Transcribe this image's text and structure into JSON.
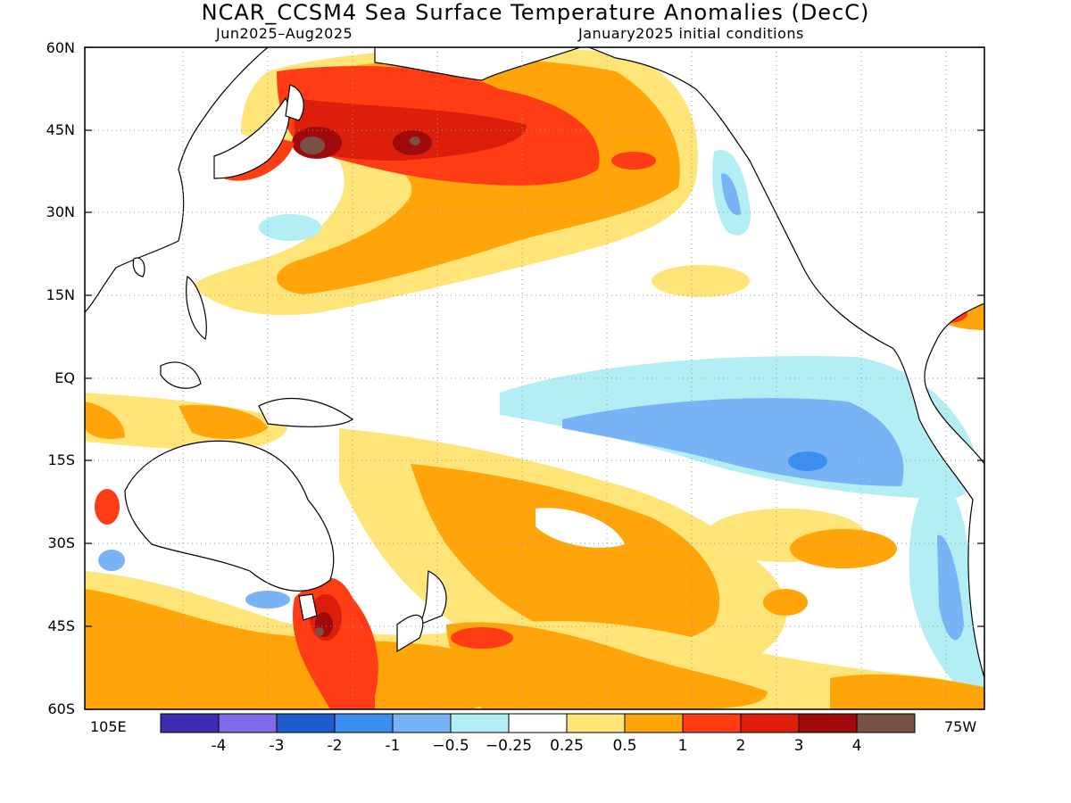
{
  "title": "NCAR_CCSM4 Sea Surface Temperature Anomalies (DecC)",
  "subtitle_left": "Jun2025–Aug2025",
  "subtitle_right": "January2025 initial conditions",
  "y_ticks": [
    "60N",
    "45N",
    "30N",
    "15N",
    "EQ",
    "15S",
    "30S",
    "45S",
    "60S"
  ],
  "x_left_label": "105E",
  "x_right_label": "75W",
  "colorbar": {
    "colors": [
      "#3c2db4",
      "#7f6be8",
      "#1e5ccd",
      "#3c8ff0",
      "#78b4f5",
      "#b4eef5",
      "#ffffff",
      "#ffe478",
      "#ffa50a",
      "#ff3c14",
      "#dc1e0a",
      "#a00a0a",
      "#785046"
    ],
    "labels": [
      "-4",
      "-3",
      "-2",
      "-1",
      "−0.5",
      "−0.25",
      "0.25",
      "0.5",
      "1",
      "2",
      "3",
      "4"
    ]
  }
}
